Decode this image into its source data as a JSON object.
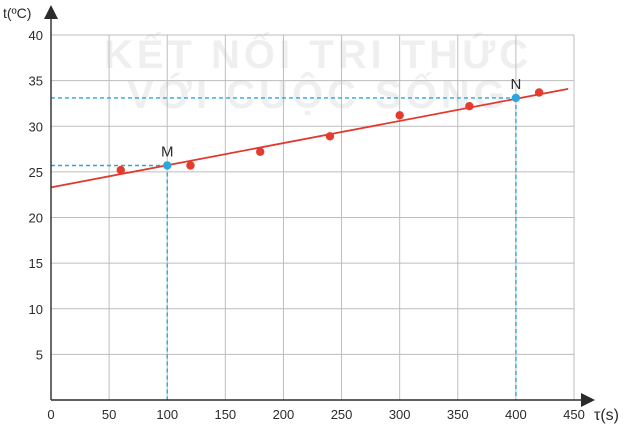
{
  "chart_data": {
    "type": "scatter",
    "xlabel": "τ(s)",
    "ylabel": "t(ºC)",
    "xlim": [
      0,
      450
    ],
    "ylim": [
      0,
      40
    ],
    "x_ticks": [
      0,
      50,
      100,
      150,
      200,
      250,
      300,
      350,
      400,
      450
    ],
    "y_ticks": [
      5,
      10,
      15,
      20,
      25,
      30,
      35,
      40
    ],
    "grid": true,
    "watermark": [
      "KẾT NỐI TRI THỨC",
      "VỚI CUỘC SỐNG"
    ],
    "series": [
      {
        "points": [
          {
            "x": 60,
            "y": 25.2
          },
          {
            "x": 120,
            "y": 25.7
          },
          {
            "x": 180,
            "y": 27.2
          },
          {
            "x": 240,
            "y": 28.9
          },
          {
            "x": 300,
            "y": 31.2
          },
          {
            "x": 360,
            "y": 32.2
          },
          {
            "x": 420,
            "y": 33.7
          }
        ],
        "color": "#e63a2e"
      }
    ],
    "fit_line": {
      "x": [
        0,
        445
      ],
      "y": [
        23.3,
        34.1
      ],
      "color": "#e03a2e"
    },
    "annotations": [
      {
        "label": "M",
        "x": 100,
        "y": 25.7,
        "color": "#29a8e0"
      },
      {
        "label": "N",
        "x": 400,
        "y": 33.1,
        "color": "#29a8e0"
      }
    ],
    "guide_color": "#29a8e0"
  }
}
